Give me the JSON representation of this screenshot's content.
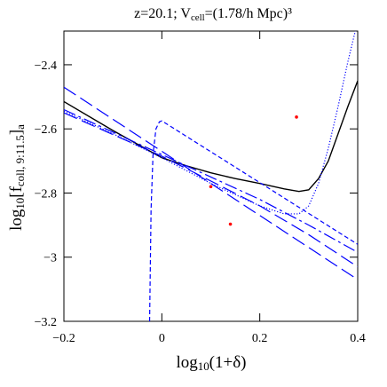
{
  "chart_data": {
    "type": "line",
    "title_parts": [
      "z=20.1; V",
      "cell",
      "=(1.78/h Mpc)³"
    ],
    "xlabel_parts": [
      "log",
      "10",
      "(1+δ)"
    ],
    "ylabel_parts": [
      "log",
      "10",
      "[f",
      "coll, 9:11.5",
      "]",
      "a"
    ],
    "xlim": [
      -0.2,
      0.4
    ],
    "ylim": [
      -3.2,
      -2.295
    ],
    "xticks": [
      {
        "value": -0.2,
        "label": "−0.2"
      },
      0,
      0.2,
      0.4
    ],
    "yticks": [
      {
        "value": -2.4,
        "label": "−2.4"
      },
      {
        "value": -2.6,
        "label": "−2.6"
      },
      {
        "value": -2.8,
        "label": "−2.8"
      },
      {
        "value": -3,
        "label": "−3"
      },
      {
        "value": -3.2,
        "label": "−3.2"
      }
    ],
    "series": [
      {
        "style": "solid",
        "color": "#000000",
        "x": [
          -0.2,
          -0.1,
          0,
          0.05,
          0.1,
          0.15,
          0.2,
          0.25,
          0.28,
          0.3,
          0.32,
          0.34,
          0.36,
          0.38,
          0.4
        ],
        "values": [
          -2.515,
          -2.605,
          -2.69,
          -2.715,
          -2.737,
          -2.755,
          -2.77,
          -2.787,
          -2.795,
          -2.79,
          -2.755,
          -2.7,
          -2.615,
          -2.53,
          -2.45
        ]
      },
      {
        "style": "dotted",
        "color": "#0000ff",
        "x": [
          -0.2,
          -0.1,
          0,
          0.1,
          0.2,
          0.25,
          0.28,
          0.3,
          0.32,
          0.34,
          0.36,
          0.38,
          0.395
        ],
        "values": [
          -2.545,
          -2.615,
          -2.69,
          -2.77,
          -2.84,
          -2.865,
          -2.865,
          -2.84,
          -2.77,
          -2.66,
          -2.53,
          -2.39,
          -2.295
        ]
      },
      {
        "style": "dashed",
        "color": "#0000ff",
        "x": [
          -0.025,
          -0.022,
          -0.018,
          -0.012,
          -0.005,
          0,
          0.4
        ],
        "values": [
          -3.2,
          -2.85,
          -2.68,
          -2.6,
          -2.578,
          -2.575,
          -2.96
        ]
      },
      {
        "style": "longdash",
        "color": "#0000ff",
        "x": [
          -0.2,
          0.4
        ],
        "values": [
          -2.47,
          -3.07
        ]
      },
      {
        "style": "longdash",
        "color": "#0000ff",
        "x": [
          -0.2,
          0,
          0.2,
          0.3,
          0.4
        ],
        "values": [
          -2.55,
          -2.685,
          -2.84,
          -2.93,
          -3.03
        ]
      },
      {
        "style": "dashdot",
        "color": "#0000ff",
        "x": [
          -0.2,
          0,
          0.2,
          0.3,
          0.4
        ],
        "values": [
          -2.54,
          -2.68,
          -2.82,
          -2.9,
          -2.985
        ]
      },
      {
        "style": "points",
        "color": "#ff0000",
        "x": [
          0.275,
          0.14,
          0.1
        ],
        "values": [
          -2.563,
          -2.897,
          -2.78
        ]
      }
    ]
  }
}
